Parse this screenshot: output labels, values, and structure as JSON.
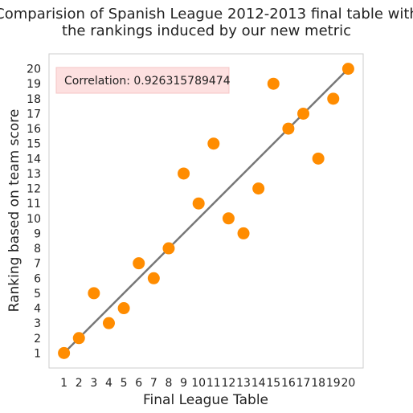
{
  "title_lines": [
    "Comparision of Spanish League 2012-2013 final table with",
    "the rankings induced by our new metric"
  ],
  "annotation": {
    "text": "Correlation: 0.926315789474",
    "box_color": "#fde0e0",
    "box_border_color": "#f5c4c4"
  },
  "colors": {
    "point": "#ff8c00",
    "line": "#777777",
    "frame": "#cccccc"
  },
  "chart_data": {
    "type": "scatter",
    "title": "Comparision of Spanish League 2012-2013 final table with the rankings induced by our new metric",
    "xlabel": "Final League Table",
    "ylabel": "Ranking based on team score",
    "xlim": [
      0,
      21
    ],
    "ylim": [
      0,
      21
    ],
    "x_ticks": [
      1,
      2,
      3,
      4,
      5,
      6,
      7,
      8,
      9,
      10,
      11,
      12,
      13,
      14,
      15,
      16,
      17,
      18,
      19,
      20
    ],
    "y_ticks": [
      1,
      2,
      3,
      4,
      5,
      6,
      7,
      8,
      9,
      10,
      11,
      12,
      13,
      14,
      15,
      16,
      17,
      18,
      19,
      20
    ],
    "grid": false,
    "points": [
      {
        "x": 1,
        "y": 1
      },
      {
        "x": 2,
        "y": 2
      },
      {
        "x": 3,
        "y": 5
      },
      {
        "x": 4,
        "y": 3
      },
      {
        "x": 5,
        "y": 4
      },
      {
        "x": 6,
        "y": 7
      },
      {
        "x": 7,
        "y": 6
      },
      {
        "x": 8,
        "y": 8
      },
      {
        "x": 9,
        "y": 13
      },
      {
        "x": 10,
        "y": 11
      },
      {
        "x": 11,
        "y": 15
      },
      {
        "x": 12,
        "y": 10
      },
      {
        "x": 13,
        "y": 9
      },
      {
        "x": 14,
        "y": 12
      },
      {
        "x": 15,
        "y": 19
      },
      {
        "x": 16,
        "y": 16
      },
      {
        "x": 17,
        "y": 17
      },
      {
        "x": 18,
        "y": 14
      },
      {
        "x": 19,
        "y": 18
      },
      {
        "x": 20,
        "y": 20
      }
    ],
    "reference_line": {
      "x": [
        1,
        20
      ],
      "y": [
        1,
        20
      ]
    }
  }
}
